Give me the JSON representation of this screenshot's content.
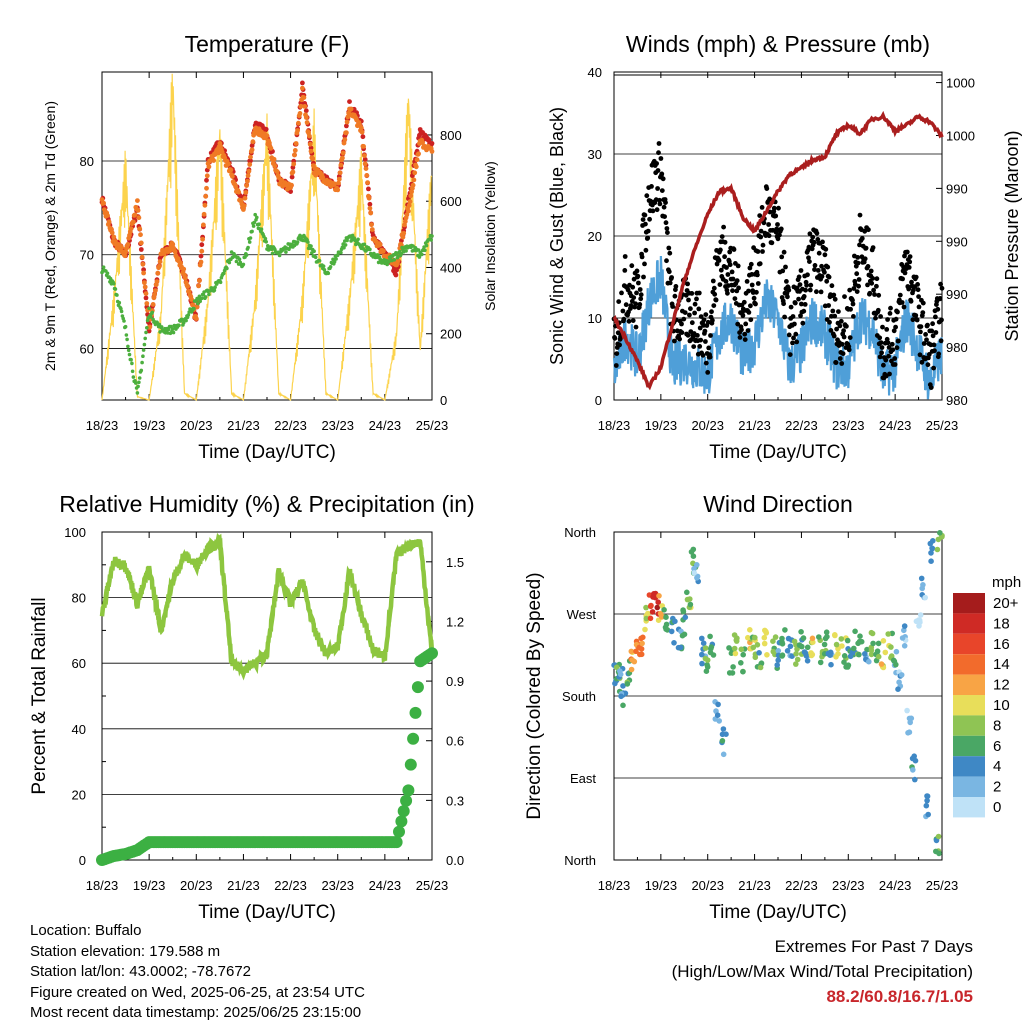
{
  "chart_data": [
    {
      "type": "line",
      "title": "Temperature (F)",
      "xlabel": "Time (Day/UTC)",
      "ylabel_left": "2m & 9m T (Red, Orange) & 2m Td (Green)",
      "ylabel_right": "Solar Insolation (Yellow)",
      "x_ticks": [
        "18/23",
        "19/23",
        "20/23",
        "21/23",
        "22/23",
        "23/23",
        "24/23",
        "25/23"
      ],
      "ylim": [
        54.5,
        89.5
      ],
      "y_ticks": [
        60,
        70,
        80
      ],
      "y2lim": [
        0,
        990
      ],
      "y2_ticks": [
        0,
        200,
        400,
        600,
        800
      ],
      "grid": "horizontal",
      "x_days": [
        0,
        0.25,
        0.5,
        0.75,
        1,
        1.25,
        1.5,
        1.75,
        2,
        2.25,
        2.5,
        2.75,
        3,
        3.25,
        3.5,
        3.75,
        4,
        4.25,
        4.5,
        4.75,
        5,
        5.25,
        5.5,
        5.75,
        6,
        6.25,
        6.5,
        6.75,
        7
      ],
      "series": [
        {
          "name": "2m T",
          "color": "#cc2222",
          "values": [
            76,
            71.5,
            70,
            75,
            62,
            70,
            71,
            68,
            63,
            80,
            82,
            79,
            75,
            84,
            83,
            78,
            77,
            88,
            79,
            78,
            77,
            86,
            84,
            72,
            70,
            68,
            76,
            83,
            82
          ]
        },
        {
          "name": "9m T",
          "color": "#f07a25",
          "values": [
            76,
            71.5,
            70,
            75.5,
            62,
            70,
            71,
            68,
            63,
            79.5,
            81.5,
            78.5,
            75,
            83.5,
            82.5,
            78,
            77,
            87.5,
            79,
            78,
            77,
            85.5,
            83.5,
            72,
            70,
            69,
            75,
            82,
            81
          ]
        },
        {
          "name": "2m Td",
          "color": "#4caf3e",
          "values": [
            68.5,
            67,
            62,
            55,
            64,
            62,
            62,
            63,
            65,
            66,
            67,
            70,
            69,
            74,
            71,
            70,
            71,
            72,
            70,
            68,
            70,
            72,
            71,
            70,
            69,
            70,
            71,
            70,
            72
          ]
        },
        {
          "name": "Solar Insolation",
          "color": "#fcd34d",
          "axis": "right",
          "values": [
            0,
            300,
            700,
            10,
            0,
            250,
            960,
            20,
            0,
            300,
            800,
            20,
            0,
            300,
            800,
            20,
            0,
            300,
            800,
            20,
            0,
            300,
            700,
            20,
            0,
            200,
            900,
            150,
            700
          ]
        }
      ]
    },
    {
      "type": "scatter",
      "title": "Winds (mph) & Pressure (mb)",
      "xlabel": "Time (Day/UTC)",
      "ylabel_left": "Sonic Wind & Gust (Blue, Black)",
      "ylabel_right": "Station Pressure (Maroon)",
      "x_ticks": [
        "18/23",
        "19/23",
        "20/23",
        "21/23",
        "22/23",
        "23/23",
        "24/23",
        "25/23"
      ],
      "ylim": [
        0,
        40
      ],
      "y_ticks": [
        0,
        10,
        20,
        30,
        40
      ],
      "y2_tick_labels": [
        "980",
        "980",
        "990",
        "990",
        "990",
        "1000",
        "1000"
      ],
      "grid": "horizontal",
      "x_days": [
        0,
        0.25,
        0.5,
        0.75,
        1,
        1.25,
        1.5,
        1.75,
        2,
        2.25,
        2.5,
        2.75,
        3,
        3.25,
        3.5,
        3.75,
        4,
        4.25,
        4.5,
        4.75,
        5,
        5.25,
        5.5,
        5.75,
        6,
        6.25,
        6.5,
        6.75,
        7
      ],
      "series": [
        {
          "name": "Sonic Wind",
          "color": "#4f9fd8",
          "values": [
            3,
            8,
            5,
            12,
            15,
            4,
            5,
            4,
            3,
            8,
            10,
            5,
            7,
            12,
            10,
            4,
            6,
            10,
            8,
            4,
            4,
            10,
            9,
            3,
            4,
            10,
            6,
            2,
            6
          ]
        },
        {
          "name": "Gust",
          "color": "#000000",
          "values": [
            6,
            14,
            12,
            25,
            28,
            10,
            11,
            10,
            7,
            18,
            16,
            10,
            15,
            23,
            20,
            9,
            12,
            18,
            15,
            8,
            9,
            19,
            16,
            6,
            8,
            17,
            10,
            5,
            11
          ]
        },
        {
          "name": "Station Pressure",
          "color": "#aa1e1e",
          "axis": "right",
          "values": [
            2.5,
            1.8,
            1.0,
            0.1,
            0.8,
            2.3,
            3.8,
            5.0,
            6.1,
            6.9,
            7.0,
            6.0,
            5.5,
            6.2,
            6.9,
            7.5,
            7.7,
            8.0,
            8.1,
            8.9,
            9.2,
            8.9,
            9.4,
            9.5,
            9.0,
            9.2,
            9.5,
            9.3,
            8.8
          ]
        }
      ]
    },
    {
      "type": "line",
      "title": "Relative Humidity (%) & Precipitation (in)",
      "xlabel": "Time (Day/UTC)",
      "ylabel_left": "Percent & Total Rainfall",
      "x_ticks": [
        "18/23",
        "19/23",
        "20/23",
        "21/23",
        "22/23",
        "23/23",
        "24/23",
        "25/23"
      ],
      "ylim": [
        0,
        100
      ],
      "y_ticks": [
        0,
        20,
        40,
        60,
        80,
        100
      ],
      "y2lim": [
        0,
        1.65
      ],
      "y2_ticks": [
        "0.0",
        "0.3",
        "0.6",
        "0.9",
        "1.2",
        "1.5"
      ],
      "grid": "horizontal",
      "x_days": [
        0,
        0.25,
        0.5,
        0.75,
        1,
        1.25,
        1.5,
        1.75,
        2,
        2.25,
        2.5,
        2.75,
        3,
        3.25,
        3.5,
        3.75,
        4,
        4.25,
        4.5,
        4.75,
        5,
        5.25,
        5.5,
        5.75,
        6,
        6.25,
        6.5,
        6.75,
        7
      ],
      "series": [
        {
          "name": "Relative Humidity",
          "color": "#8dc63f",
          "values": [
            75,
            91,
            90,
            78,
            89,
            70,
            85,
            93,
            90,
            95,
            97,
            60,
            58,
            60,
            63,
            88,
            78,
            85,
            70,
            63,
            65,
            88,
            75,
            64,
            62,
            93,
            96,
            97,
            63
          ]
        },
        {
          "name": "Total Precipitation",
          "color": "#3cb043",
          "axis": "right",
          "values": [
            0,
            0.02,
            0.03,
            0.05,
            0.09,
            0.09,
            0.09,
            0.09,
            0.09,
            0.09,
            0.09,
            0.09,
            0.09,
            0.09,
            0.09,
            0.09,
            0.09,
            0.09,
            0.09,
            0.09,
            0.09,
            0.09,
            0.09,
            0.09,
            0.09,
            0.09,
            0.35,
            1.0,
            1.04
          ]
        }
      ]
    },
    {
      "type": "scatter",
      "title": "Wind Direction",
      "xlabel": "Time (Day/UTC)",
      "ylabel": "Direction (Colored By Speed)",
      "x_ticks": [
        "18/23",
        "19/23",
        "20/23",
        "21/23",
        "22/23",
        "23/23",
        "24/23",
        "25/23"
      ],
      "y_tick_labels": [
        "North",
        "East",
        "South",
        "West",
        "North"
      ],
      "ylim": [
        0,
        360
      ],
      "grid": "horizontal",
      "colorbar": {
        "title": "mph",
        "labels": [
          "20+",
          "18",
          "16",
          "14",
          "12",
          "10",
          "8",
          "6",
          "4",
          "2",
          "0"
        ],
        "colors": [
          "#a51c1c",
          "#cf2a25",
          "#e8452a",
          "#f26b2c",
          "#f8a445",
          "#e8de5a",
          "#8fc454",
          "#4aa765",
          "#3f88c5",
          "#7ab6e2",
          "#bfe2f7"
        ]
      },
      "points": [
        {
          "x": 0.05,
          "dir": 200,
          "speed": 4
        },
        {
          "x": 0.1,
          "dir": 210,
          "speed": 6
        },
        {
          "x": 0.15,
          "dir": 195,
          "speed": 4
        },
        {
          "x": 0.2,
          "dir": 180,
          "speed": 4
        },
        {
          "x": 0.3,
          "dir": 205,
          "speed": 6
        },
        {
          "x": 0.4,
          "dir": 215,
          "speed": 12
        },
        {
          "x": 0.5,
          "dir": 225,
          "speed": 14
        },
        {
          "x": 0.6,
          "dir": 240,
          "speed": 14
        },
        {
          "x": 0.7,
          "dir": 265,
          "speed": 10
        },
        {
          "x": 0.8,
          "dir": 280,
          "speed": 16
        },
        {
          "x": 0.9,
          "dir": 285,
          "speed": 18
        },
        {
          "x": 1.0,
          "dir": 275,
          "speed": 10
        },
        {
          "x": 1.1,
          "dir": 260,
          "speed": 6
        },
        {
          "x": 1.25,
          "dir": 250,
          "speed": 4
        },
        {
          "x": 1.4,
          "dir": 240,
          "speed": 4
        },
        {
          "x": 1.5,
          "dir": 260,
          "speed": 6
        },
        {
          "x": 1.6,
          "dir": 290,
          "speed": 8
        },
        {
          "x": 1.7,
          "dir": 330,
          "speed": 6
        },
        {
          "x": 1.75,
          "dir": 320,
          "speed": 2
        },
        {
          "x": 1.9,
          "dir": 230,
          "speed": 4
        },
        {
          "x": 2.0,
          "dir": 220,
          "speed": 8
        },
        {
          "x": 2.1,
          "dir": 235,
          "speed": 6
        },
        {
          "x": 2.2,
          "dir": 160,
          "speed": 2
        },
        {
          "x": 2.35,
          "dir": 130,
          "speed": 4
        },
        {
          "x": 2.5,
          "dir": 220,
          "speed": 6
        },
        {
          "x": 2.6,
          "dir": 235,
          "speed": 8
        },
        {
          "x": 2.75,
          "dir": 220,
          "speed": 6
        },
        {
          "x": 2.9,
          "dir": 240,
          "speed": 10
        },
        {
          "x": 3.0,
          "dir": 230,
          "speed": 8
        },
        {
          "x": 3.1,
          "dir": 225,
          "speed": 6
        },
        {
          "x": 3.25,
          "dir": 240,
          "speed": 10
        },
        {
          "x": 3.4,
          "dir": 230,
          "speed": 8
        },
        {
          "x": 3.5,
          "dir": 225,
          "speed": 4
        },
        {
          "x": 3.6,
          "dir": 238,
          "speed": 6
        },
        {
          "x": 3.75,
          "dir": 232,
          "speed": 4
        },
        {
          "x": 3.9,
          "dir": 228,
          "speed": 8
        },
        {
          "x": 4.0,
          "dir": 240,
          "speed": 6
        },
        {
          "x": 4.1,
          "dir": 225,
          "speed": 4
        },
        {
          "x": 4.25,
          "dir": 235,
          "speed": 10
        },
        {
          "x": 4.4,
          "dir": 230,
          "speed": 8
        },
        {
          "x": 4.5,
          "dir": 240,
          "speed": 6
        },
        {
          "x": 4.6,
          "dir": 222,
          "speed": 4
        },
        {
          "x": 4.75,
          "dir": 236,
          "speed": 10
        },
        {
          "x": 4.9,
          "dir": 230,
          "speed": 8
        },
        {
          "x": 5.0,
          "dir": 226,
          "speed": 6
        },
        {
          "x": 5.1,
          "dir": 238,
          "speed": 4
        },
        {
          "x": 5.25,
          "dir": 232,
          "speed": 6
        },
        {
          "x": 5.4,
          "dir": 228,
          "speed": 4
        },
        {
          "x": 5.5,
          "dir": 236,
          "speed": 8
        },
        {
          "x": 5.6,
          "dir": 230,
          "speed": 6
        },
        {
          "x": 5.75,
          "dir": 226,
          "speed": 10
        },
        {
          "x": 5.9,
          "dir": 235,
          "speed": 8
        },
        {
          "x": 6.0,
          "dir": 220,
          "speed": 4
        },
        {
          "x": 6.1,
          "dir": 200,
          "speed": 2
        },
        {
          "x": 6.2,
          "dir": 250,
          "speed": 2
        },
        {
          "x": 6.3,
          "dir": 150,
          "speed": 2
        },
        {
          "x": 6.4,
          "dir": 100,
          "speed": 4
        },
        {
          "x": 6.5,
          "dir": 260,
          "speed": 0
        },
        {
          "x": 6.6,
          "dir": 300,
          "speed": 2
        },
        {
          "x": 6.7,
          "dir": 60,
          "speed": 4
        },
        {
          "x": 6.8,
          "dir": 340,
          "speed": 4
        },
        {
          "x": 6.9,
          "dir": 20,
          "speed": 6
        },
        {
          "x": 6.95,
          "dir": 355,
          "speed": 8
        }
      ]
    }
  ],
  "footer": {
    "location": "Location: Buffalo",
    "elevation": "Station elevation: 179.588 m",
    "latlon": "Station lat/lon: 43.0002; -78.7672",
    "created": "Figure created on Wed, 2025-06-25, at 23:54 UTC",
    "recent": "Most recent data timestamp: 2025/06/25 23:15:00"
  },
  "extremes": {
    "heading": "Extremes For Past 7 Days",
    "legend": "(High/Low/Max Wind/Total Precipitation)",
    "values": "88.2/60.8/16.7/1.05"
  }
}
